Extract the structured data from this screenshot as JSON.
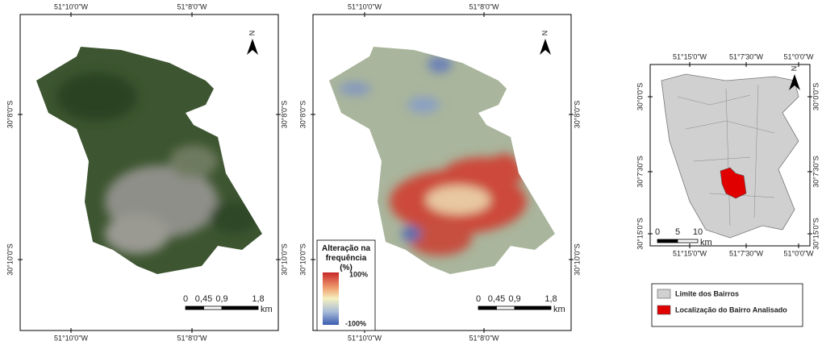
{
  "panels": [
    {
      "lon_labels": [
        "51°10'0\"W",
        "51°8'0\"W"
      ],
      "lat_labels": [
        "30°8'0\"S",
        "30°10'0\"S"
      ],
      "north": "N",
      "scale": {
        "ticks": [
          "0",
          "0,45",
          "0,9",
          "1,8"
        ],
        "unit": "km"
      }
    },
    {
      "lon_labels": [
        "51°10'0\"W",
        "51°8'0\"W"
      ],
      "lat_labels": [
        "30°8'0\"S",
        "30°10'0\"S"
      ],
      "north": "N",
      "scale": {
        "ticks": [
          "0",
          "0,45",
          "0,9",
          "1,8"
        ],
        "unit": "km"
      },
      "legend": {
        "title": "Alteração na frequência (%)",
        "max": "100%",
        "min": "-100%"
      }
    },
    {
      "lon_labels": [
        "51°15'0\"W",
        "51°7'30\"W",
        "51°0'0\"W"
      ],
      "lat_labels": [
        "30°0'0\"S",
        "30°7'30\"S",
        "30°15'0\"S"
      ],
      "north": "N",
      "scale": {
        "ticks": [
          "0",
          "5",
          "10"
        ],
        "unit": "km"
      },
      "legend": {
        "items": [
          "Limite dos Bairros",
          "Localização do Bairro Analisado"
        ]
      }
    }
  ]
}
